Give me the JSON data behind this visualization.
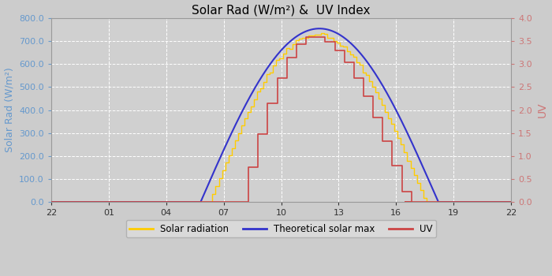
{
  "title": "Solar Rad (W/m²) &  UV Index",
  "ylabel_left": "Solar Rad (W/m²)",
  "ylabel_right": "UV",
  "x_tick_labels": [
    "22",
    "01",
    "04",
    "07",
    "10",
    "13",
    "16",
    "19",
    "22"
  ],
  "ylim_left": [
    0,
    800
  ],
  "ylim_right": [
    0,
    4.0
  ],
  "y_ticks_left": [
    0.0,
    100.0,
    200.0,
    300.0,
    400.0,
    500.0,
    600.0,
    700.0,
    800.0
  ],
  "y_ticks_right": [
    0.0,
    0.5,
    1.0,
    1.5,
    2.0,
    2.5,
    3.0,
    3.5,
    4.0
  ],
  "xlim": [
    22,
    46
  ],
  "x_tick_positions": [
    22,
    25,
    28,
    31,
    34,
    37,
    40,
    43,
    46
  ],
  "bg_color": "#cccccc",
  "plot_bg_color": "#d0d0d0",
  "grid_color": "#ffffff",
  "left_label_color": "#6699cc",
  "right_label_color": "#cc7777",
  "title_color": "#000000",
  "solar_rad_color": "#ffcc00",
  "theoretical_max_color": "#3333cc",
  "uv_color": "#cc4444",
  "legend_labels": [
    "Solar radiation",
    "Theoretical solar max",
    "UV"
  ],
  "solar_sunrise": 30.25,
  "solar_sunset": 41.5,
  "solar_peak_hour": 35.8,
  "solar_peak_value": 730,
  "theoretical_peak_value": 755,
  "theoretical_sunrise": 29.8,
  "theoretical_sunset": 42.2,
  "uv_sunrise": 31.8,
  "uv_sunset": 40.5,
  "uv_peak_value": 3.6,
  "uv_peak_hour": 35.5
}
